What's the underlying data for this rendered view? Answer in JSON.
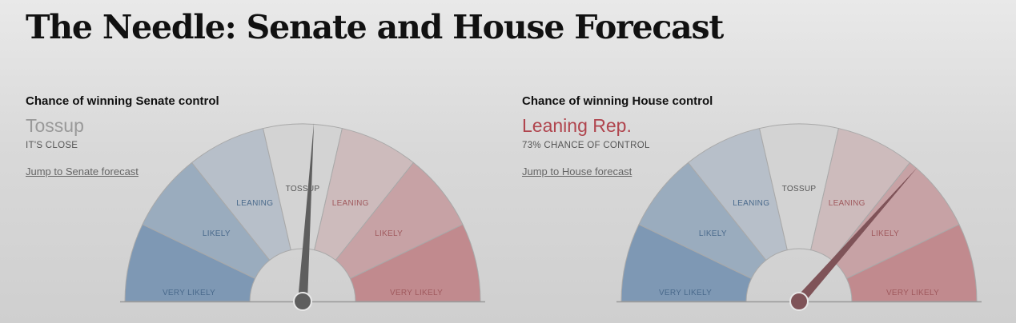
{
  "page": {
    "title": "The Needle: Senate and House Forecast"
  },
  "colors": {
    "dem_strong": "#7e98b4",
    "rep_strong": "#c18a8e",
    "neutral": "#d3d3d3",
    "dem_text": "#4a6a8c",
    "rep_text": "#a05a5e",
    "neutral_text": "#555555",
    "senate_needle": "#5e5e5e",
    "house_needle": "#7f5358"
  },
  "segments": [
    {
      "label": "VERY LIKELY",
      "side": "dem",
      "level": 3
    },
    {
      "label": "LIKELY",
      "side": "dem",
      "level": 2
    },
    {
      "label": "LEANING",
      "side": "dem",
      "level": 1
    },
    {
      "label": "TOSSUP",
      "side": "neutral",
      "level": 0
    },
    {
      "label": "LEANING",
      "side": "rep",
      "level": 1
    },
    {
      "label": "LIKELY",
      "side": "rep",
      "level": 2
    },
    {
      "label": "VERY LIKELY",
      "side": "rep",
      "level": 3
    }
  ],
  "senate": {
    "label": "Chance of winning Senate control",
    "status": "Tossup",
    "status_color": "#999999",
    "subtext": "IT'S CLOSE",
    "link": "Jump to Senate forecast",
    "needle_rep_probability": 0.52,
    "needle_color": "#5e5e5e"
  },
  "house": {
    "label": "Chance of winning House control",
    "status": "Leaning Rep.",
    "status_color": "#b0454e",
    "subtext": "73% CHANCE OF CONTROL",
    "link": "Jump to House forecast",
    "needle_rep_probability": 0.73,
    "needle_color": "#7f5358"
  }
}
